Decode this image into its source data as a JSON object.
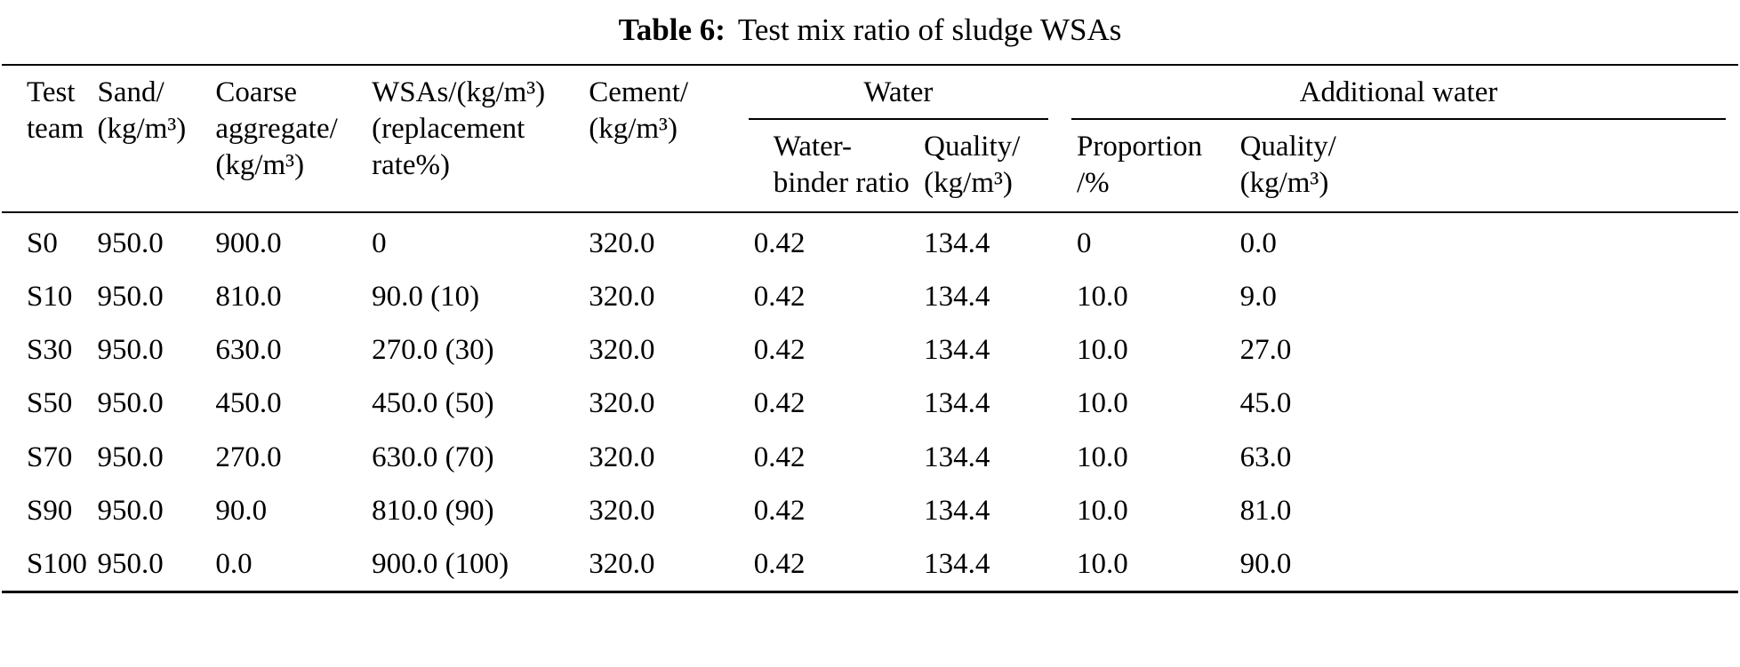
{
  "page": {
    "background": "#ffffff",
    "text_color": "#000000"
  },
  "title": {
    "label": "Table 6:",
    "text": "Test mix ratio of sludge WSAs"
  },
  "table": {
    "group_headers": [
      {
        "label": "Water",
        "span": 2
      },
      {
        "label": "Additional water",
        "span": 2
      }
    ],
    "headers": {
      "test_team": "Test\nteam",
      "sand": "Sand/\n(kg/m³)",
      "coarse_aggregate": "Coarse\naggregate/\n(kg/m³)",
      "wsas": "WSAs/(kg/m³)\n(replacement\nrate%)",
      "cement": "Cement/\n(kg/m³)",
      "water_binder_ratio": "Water-\nbinder ratio",
      "water_quality": "Quality/\n(kg/m³)",
      "additional_proportion": "Proportion\n/%",
      "additional_quality": "Quality/\n(kg/m³)"
    },
    "rows": [
      [
        "S0",
        "950.0",
        "900.0",
        "0",
        "320.0",
        "0.42",
        "134.4",
        "0",
        "0.0"
      ],
      [
        "S10",
        "950.0",
        "810.0",
        "90.0 (10)",
        "320.0",
        "0.42",
        "134.4",
        "10.0",
        "9.0"
      ],
      [
        "S30",
        "950.0",
        "630.0",
        "270.0 (30)",
        "320.0",
        "0.42",
        "134.4",
        "10.0",
        "27.0"
      ],
      [
        "S50",
        "950.0",
        "450.0",
        "450.0 (50)",
        "320.0",
        "0.42",
        "134.4",
        "10.0",
        "45.0"
      ],
      [
        "S70",
        "950.0",
        "270.0",
        "630.0 (70)",
        "320.0",
        "0.42",
        "134.4",
        "10.0",
        "63.0"
      ],
      [
        "S90",
        "950.0",
        "90.0",
        "810.0 (90)",
        "320.0",
        "0.42",
        "134.4",
        "10.0",
        "81.0"
      ],
      [
        "S100",
        "950.0",
        "0.0",
        "900.0 (100)",
        "320.0",
        "0.42",
        "134.4",
        "10.0",
        "90.0"
      ]
    ]
  }
}
